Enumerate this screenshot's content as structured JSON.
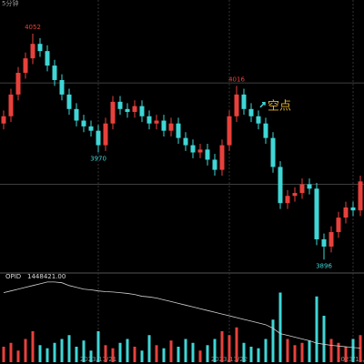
{
  "header": {
    "period": "5分钟"
  },
  "chart_data": {
    "type": "candlestick",
    "open": [
      3990,
      3995,
      4010,
      4025,
      4035,
      4045,
      4040,
      4030,
      4020,
      4010,
      4000,
      3992,
      3988,
      3985,
      3975,
      3990,
      4005,
      4000,
      3998,
      4002,
      3995,
      3990,
      3992,
      3985,
      3990,
      3980,
      3975,
      3970,
      3972,
      3965,
      3958,
      3975,
      3995,
      4010,
      4000,
      3995,
      3990,
      3980,
      3960,
      3935,
      3940,
      3942,
      3948,
      3945,
      3910,
      3905,
      3915,
      3925,
      3932,
      3930
    ],
    "high": [
      3999,
      4014,
      4029,
      4039,
      4052,
      4049,
      4044,
      4034,
      4024,
      4014,
      4004,
      3996,
      3992,
      3989,
      3994,
      4009,
      4009,
      4004,
      4006,
      4006,
      3999,
      3996,
      3996,
      3994,
      3994,
      3984,
      3979,
      3976,
      3976,
      3969,
      3979,
      3999,
      4016,
      4014,
      4004,
      3999,
      3994,
      3984,
      3964,
      3944,
      3946,
      3952,
      3952,
      3949,
      3914,
      3919,
      3929,
      3936,
      3936,
      3954
    ],
    "low": [
      3986,
      3991,
      4006,
      4021,
      4031,
      4036,
      4026,
      4016,
      4006,
      3996,
      3988,
      3984,
      3981,
      3970,
      3971,
      3986,
      3996,
      3994,
      3994,
      3991,
      3986,
      3986,
      3981,
      3981,
      3976,
      3971,
      3966,
      3966,
      3961,
      3954,
      3954,
      3971,
      3991,
      3996,
      3991,
      3986,
      3976,
      3956,
      3931,
      3931,
      3936,
      3938,
      3941,
      3906,
      3896,
      3901,
      3911,
      3921,
      3926,
      3926
    ],
    "close": [
      3995,
      4010,
      4025,
      4035,
      4045,
      4040,
      4030,
      4020,
      4010,
      4000,
      3992,
      3988,
      3985,
      3975,
      3990,
      4005,
      4000,
      3998,
      4002,
      3995,
      3990,
      3992,
      3985,
      3990,
      3980,
      3975,
      3970,
      3972,
      3965,
      3958,
      3975,
      3995,
      4010,
      4000,
      3995,
      3990,
      3980,
      3960,
      3935,
      3940,
      3942,
      3948,
      3945,
      3910,
      3905,
      3915,
      3925,
      3932,
      3930,
      3950
    ],
    "categories": [
      null,
      null,
      null,
      null,
      null,
      null,
      null,
      null,
      null,
      null,
      null,
      null,
      null,
      "2023/11/21",
      null,
      null,
      null,
      null,
      null,
      null,
      null,
      null,
      null,
      null,
      null,
      null,
      null,
      null,
      null,
      null,
      null,
      "2023/11/22",
      null,
      null,
      null,
      null,
      null,
      null,
      null,
      null,
      null,
      null,
      null,
      null,
      null,
      null,
      null,
      null,
      "2023/11/2",
      null
    ],
    "ylim": [
      3888,
      4069
    ],
    "up_color": "#e8413c",
    "down_color": "#3fd6d6",
    "hlines": [
      4018,
      3948
    ],
    "extremes": [
      {
        "index": 4,
        "value": 4052,
        "kind": "high"
      },
      {
        "index": 13,
        "value": 3970,
        "kind": "low"
      },
      {
        "index": 32,
        "value": 4016,
        "kind": "high"
      },
      {
        "index": 44,
        "value": 3896,
        "kind": "low"
      }
    ],
    "annotation": {
      "index": 36,
      "value": 4000,
      "text": "空点"
    },
    "volume": [
      20,
      25,
      15,
      30,
      40,
      22,
      18,
      25,
      30,
      35,
      20,
      28,
      15,
      40,
      22,
      18,
      25,
      30,
      20,
      15,
      35,
      22,
      18,
      28,
      20,
      30,
      25,
      15,
      22,
      30,
      40,
      35,
      45,
      25,
      20,
      18,
      30,
      55,
      90,
      30,
      22,
      25,
      28,
      85,
      60,
      30,
      25,
      20,
      30,
      35
    ],
    "volume_lim": [
      0,
      100
    ],
    "opid": {
      "name": "OPID",
      "value_label": "1448421.00",
      "color": "#d0d0d0",
      "values": [
        1464000,
        1464500,
        1465000,
        1465500,
        1466000,
        1466500,
        1467000,
        1467000,
        1466800,
        1466000,
        1465500,
        1465000,
        1464800,
        1464500,
        1464300,
        1464200,
        1464000,
        1463800,
        1463500,
        1463000,
        1462800,
        1462500,
        1462000,
        1461500,
        1461000,
        1460500,
        1460000,
        1459500,
        1459000,
        1458500,
        1458000,
        1457500,
        1457000,
        1456500,
        1456000,
        1455500,
        1455000,
        1454000,
        1452500,
        1452000,
        1451500,
        1451000,
        1450500,
        1449800,
        1449500,
        1449200,
        1449000,
        1448800,
        1448600,
        1448421
      ],
      "lim": [
        1446000,
        1468000
      ]
    }
  }
}
